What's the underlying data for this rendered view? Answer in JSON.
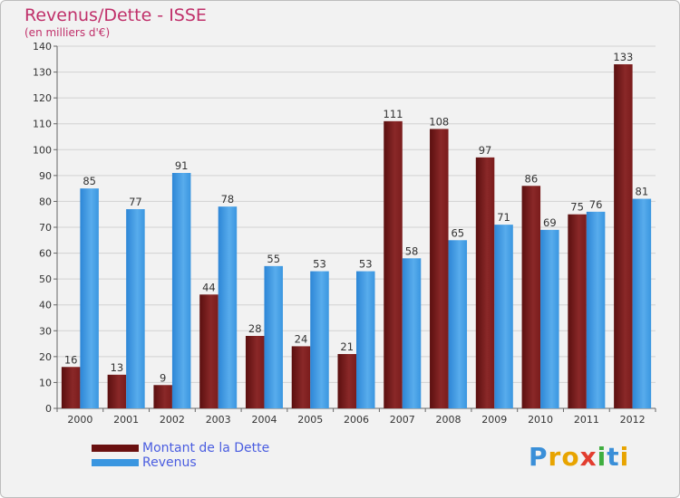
{
  "chart_data": {
    "type": "bar",
    "title": "Revenus/Dette - ISSE",
    "subtitle": "(en milliers d'€)",
    "categories": [
      "2000",
      "2001",
      "2002",
      "2003",
      "2004",
      "2005",
      "2006",
      "2007",
      "2008",
      "2009",
      "2010",
      "2011",
      "2012"
    ],
    "series": [
      {
        "name": "Montant de la Dette",
        "color": "#7a1a1a",
        "values": [
          16,
          13,
          9,
          44,
          28,
          24,
          21,
          111,
          108,
          97,
          86,
          75,
          133
        ]
      },
      {
        "name": "Revenus",
        "color": "#3a96e0",
        "values": [
          85,
          77,
          91,
          78,
          55,
          53,
          53,
          58,
          65,
          71,
          69,
          76,
          81
        ]
      }
    ],
    "ylim": [
      0,
      140
    ],
    "yticks": [
      0,
      10,
      20,
      30,
      40,
      50,
      60,
      70,
      80,
      90,
      100,
      110,
      120,
      130,
      140
    ],
    "grid": true,
    "legend": "bottom-left"
  },
  "logo": {
    "text": "Proxiti",
    "letters": [
      {
        "ch": "P",
        "color": "#3a8fd8"
      },
      {
        "ch": "r",
        "color": "#e8a400"
      },
      {
        "ch": "o",
        "color": "#e8a400"
      },
      {
        "ch": "x",
        "color": "#e23d2f"
      },
      {
        "ch": "i",
        "color": "#3fae3f"
      },
      {
        "ch": "t",
        "color": "#3a8fd8"
      },
      {
        "ch": "i",
        "color": "#e8a400"
      }
    ]
  }
}
